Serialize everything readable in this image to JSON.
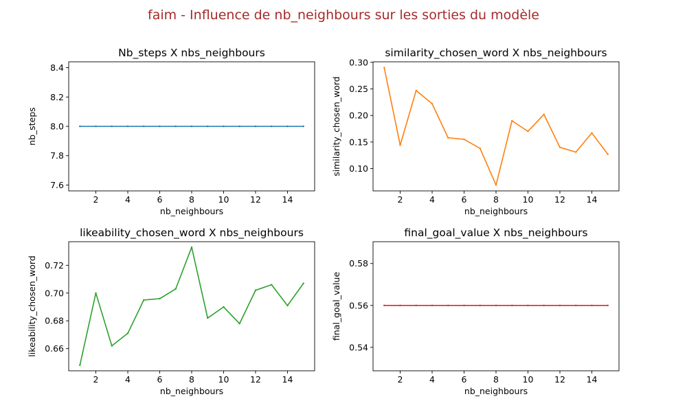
{
  "figure": {
    "suptitle": "faim - Influence de nb_neighbours sur les sorties du modèle",
    "suptitle_color": "#a52a2a"
  },
  "chart_data": [
    {
      "type": "line",
      "title": "Nb_steps X nbs_neighbours",
      "xlabel": "nb_neighbours",
      "ylabel": "nb_steps",
      "color": "#1f77b4",
      "x": [
        1,
        2,
        3,
        4,
        5,
        6,
        7,
        8,
        9,
        10,
        11,
        12,
        13,
        14,
        15
      ],
      "y": [
        8,
        8,
        8,
        8,
        8,
        8,
        8,
        8,
        8,
        8,
        8,
        8,
        8,
        8,
        8
      ],
      "xlim": [
        0.3,
        15.7
      ],
      "ylim": [
        7.56,
        8.44
      ],
      "xticks": [
        2,
        4,
        6,
        8,
        10,
        12,
        14
      ],
      "xtick_labels": [
        "2",
        "4",
        "6",
        "8",
        "10",
        "12",
        "14"
      ],
      "yticks": [
        7.6,
        7.8,
        8.0,
        8.2,
        8.4
      ],
      "ytick_labels": [
        "7.6",
        "7.8",
        "8.0",
        "8.2",
        "8.4"
      ],
      "grid": false
    },
    {
      "type": "line",
      "title": "similarity_chosen_word X nbs_neighbours",
      "xlabel": "nb_neighbours",
      "ylabel": "similarity_chosen_word",
      "color": "#ff7f0e",
      "x": [
        1,
        2,
        3,
        4,
        5,
        6,
        7,
        8,
        9,
        10,
        11,
        12,
        13,
        14,
        15
      ],
      "y": [
        0.29,
        0.144,
        0.247,
        0.222,
        0.158,
        0.155,
        0.138,
        0.069,
        0.19,
        0.17,
        0.202,
        0.14,
        0.131,
        0.167,
        0.127
      ],
      "xlim": [
        0.3,
        15.7
      ],
      "ylim": [
        0.058,
        0.301
      ],
      "xticks": [
        2,
        4,
        6,
        8,
        10,
        12,
        14
      ],
      "xtick_labels": [
        "2",
        "4",
        "6",
        "8",
        "10",
        "12",
        "14"
      ],
      "yticks": [
        0.1,
        0.15,
        0.2,
        0.25,
        0.3
      ],
      "ytick_labels": [
        "0.10",
        "0.15",
        "0.20",
        "0.25",
        "0.30"
      ],
      "grid": false
    },
    {
      "type": "line",
      "title": "likeability_chosen_word X nbs_neighbours",
      "xlabel": "nb_neighbours",
      "ylabel": "likeability_chosen_word",
      "color": "#2ca02c",
      "x": [
        1,
        2,
        3,
        4,
        5,
        6,
        7,
        8,
        9,
        10,
        11,
        12,
        13,
        14,
        15
      ],
      "y": [
        0.648,
        0.7,
        0.662,
        0.671,
        0.695,
        0.696,
        0.703,
        0.733,
        0.682,
        0.69,
        0.678,
        0.702,
        0.706,
        0.691,
        0.707
      ],
      "xlim": [
        0.3,
        15.7
      ],
      "ylim": [
        0.644,
        0.737
      ],
      "xticks": [
        2,
        4,
        6,
        8,
        10,
        12,
        14
      ],
      "xtick_labels": [
        "2",
        "4",
        "6",
        "8",
        "10",
        "12",
        "14"
      ],
      "yticks": [
        0.66,
        0.68,
        0.7,
        0.72
      ],
      "ytick_labels": [
        "0.66",
        "0.68",
        "0.70",
        "0.72"
      ],
      "grid": false
    },
    {
      "type": "line",
      "title": "final_goal_value X nbs_neighbours",
      "xlabel": "nb_neighbours",
      "ylabel": "final_goal_value",
      "color": "#d62728",
      "x": [
        1,
        2,
        3,
        4,
        5,
        6,
        7,
        8,
        9,
        10,
        11,
        12,
        13,
        14,
        15
      ],
      "y": [
        0.56,
        0.56,
        0.56,
        0.56,
        0.56,
        0.56,
        0.56,
        0.56,
        0.56,
        0.56,
        0.56,
        0.56,
        0.56,
        0.56,
        0.56
      ],
      "xlim": [
        0.3,
        15.7
      ],
      "ylim": [
        0.5288,
        0.5904
      ],
      "xticks": [
        2,
        4,
        6,
        8,
        10,
        12,
        14
      ],
      "xtick_labels": [
        "2",
        "4",
        "6",
        "8",
        "10",
        "12",
        "14"
      ],
      "yticks": [
        0.54,
        0.56,
        0.58
      ],
      "ytick_labels": [
        "0.54",
        "0.56",
        "0.58"
      ],
      "grid": false
    }
  ]
}
